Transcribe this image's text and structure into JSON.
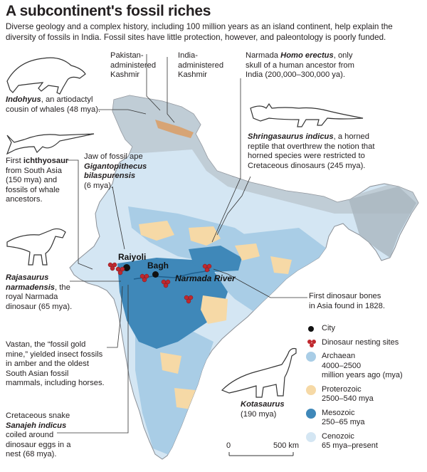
{
  "header": {
    "title": "A subcontinent's fossil riches",
    "subtitle": "Diverse geology and a complex history, including 100 million years as an island continent, help explain the diversity of fossils in India. Fossil sites have little protection, however, and paleontology is poorly funded."
  },
  "annotations": {
    "pakistan_kashmir": [
      "Pakistan-",
      "administered",
      "Kashmir"
    ],
    "india_kashmir": [
      "India-",
      "administered",
      "Kashmir"
    ],
    "homo_erectus": {
      "prefix": "Narmada ",
      "name": "Homo erectus",
      "rest1": ", only",
      "line2": "skull of a human ancestor from",
      "line3": "India (200,000–300,000 ya)."
    },
    "indohyus": {
      "name": "Indohyus",
      "rest1": ", an artiodactyl",
      "line2": "cousin of whales (48 mya)."
    },
    "ichthyosaur": {
      "prefix": "First ",
      "name": "ichthyosaur",
      "line2": "from South Asia",
      "line3": "(150 mya) and",
      "line4": "fossils of whale",
      "line5": "ancestors."
    },
    "gigantopithecus": {
      "line1": "Jaw of fossil ape",
      "name1": "Gigantopithecus",
      "name2": "bilaspurensis",
      "line4": "(6 mya)."
    },
    "shringasaurus": {
      "name": "Shringasaurus indicus",
      "rest1": ", a horned",
      "line2": "reptile that overthrew the notion that",
      "line3": "horned species were restricted to",
      "line4": "Cretaceous dinosaurs (245 mya)."
    },
    "rajasaurus": {
      "name1": "Rajasaurus",
      "name2": "narmadensis",
      "rest2": ", the",
      "line3": "royal Narmada",
      "line4": "dinosaur (65 mya)."
    },
    "first_bones": [
      "First dinosaur bones",
      "in Asia found in 1828."
    ],
    "vastan": [
      "Vastan, the “fossil gold",
      "mine,” yielded insect fossils",
      "in amber and the oldest",
      "South Asian fossil",
      "mammals, including horses."
    ],
    "kotasaurus": {
      "name": "Kotasaurus",
      "line2": "(190 mya)"
    },
    "sanajeh": {
      "line1": "Cretaceous snake",
      "name": "Sanajeh indicus",
      "line3": "coiled around",
      "line4": "dinosaur eggs in a",
      "line5": "nest (68 mya)."
    }
  },
  "places": {
    "raiyoli": "Raiyoli",
    "bagh": "Bagh",
    "narmada_river": "Narmada River"
  },
  "legend": {
    "city": "City",
    "nesting": "Dinosaur nesting sites",
    "archaean": [
      "Archaean",
      "4000–2500",
      "million years ago (mya)"
    ],
    "proterozoic": [
      "Proterozoic",
      "2500–540 mya"
    ],
    "mesozoic": [
      "Mesozoic",
      "250–65 mya"
    ],
    "cenozoic": [
      "Cenozoic",
      "65 mya–present"
    ]
  },
  "scale": {
    "start": "0",
    "end": "500 km"
  },
  "colors": {
    "archaean": "#a9cde6",
    "proterozoic": "#f6d9a6",
    "mesozoic": "#3f88b9",
    "cenozoic": "#d4e6f3",
    "nesting": "#c0282e",
    "city": "#111111",
    "mountains": "#d9a06a"
  }
}
